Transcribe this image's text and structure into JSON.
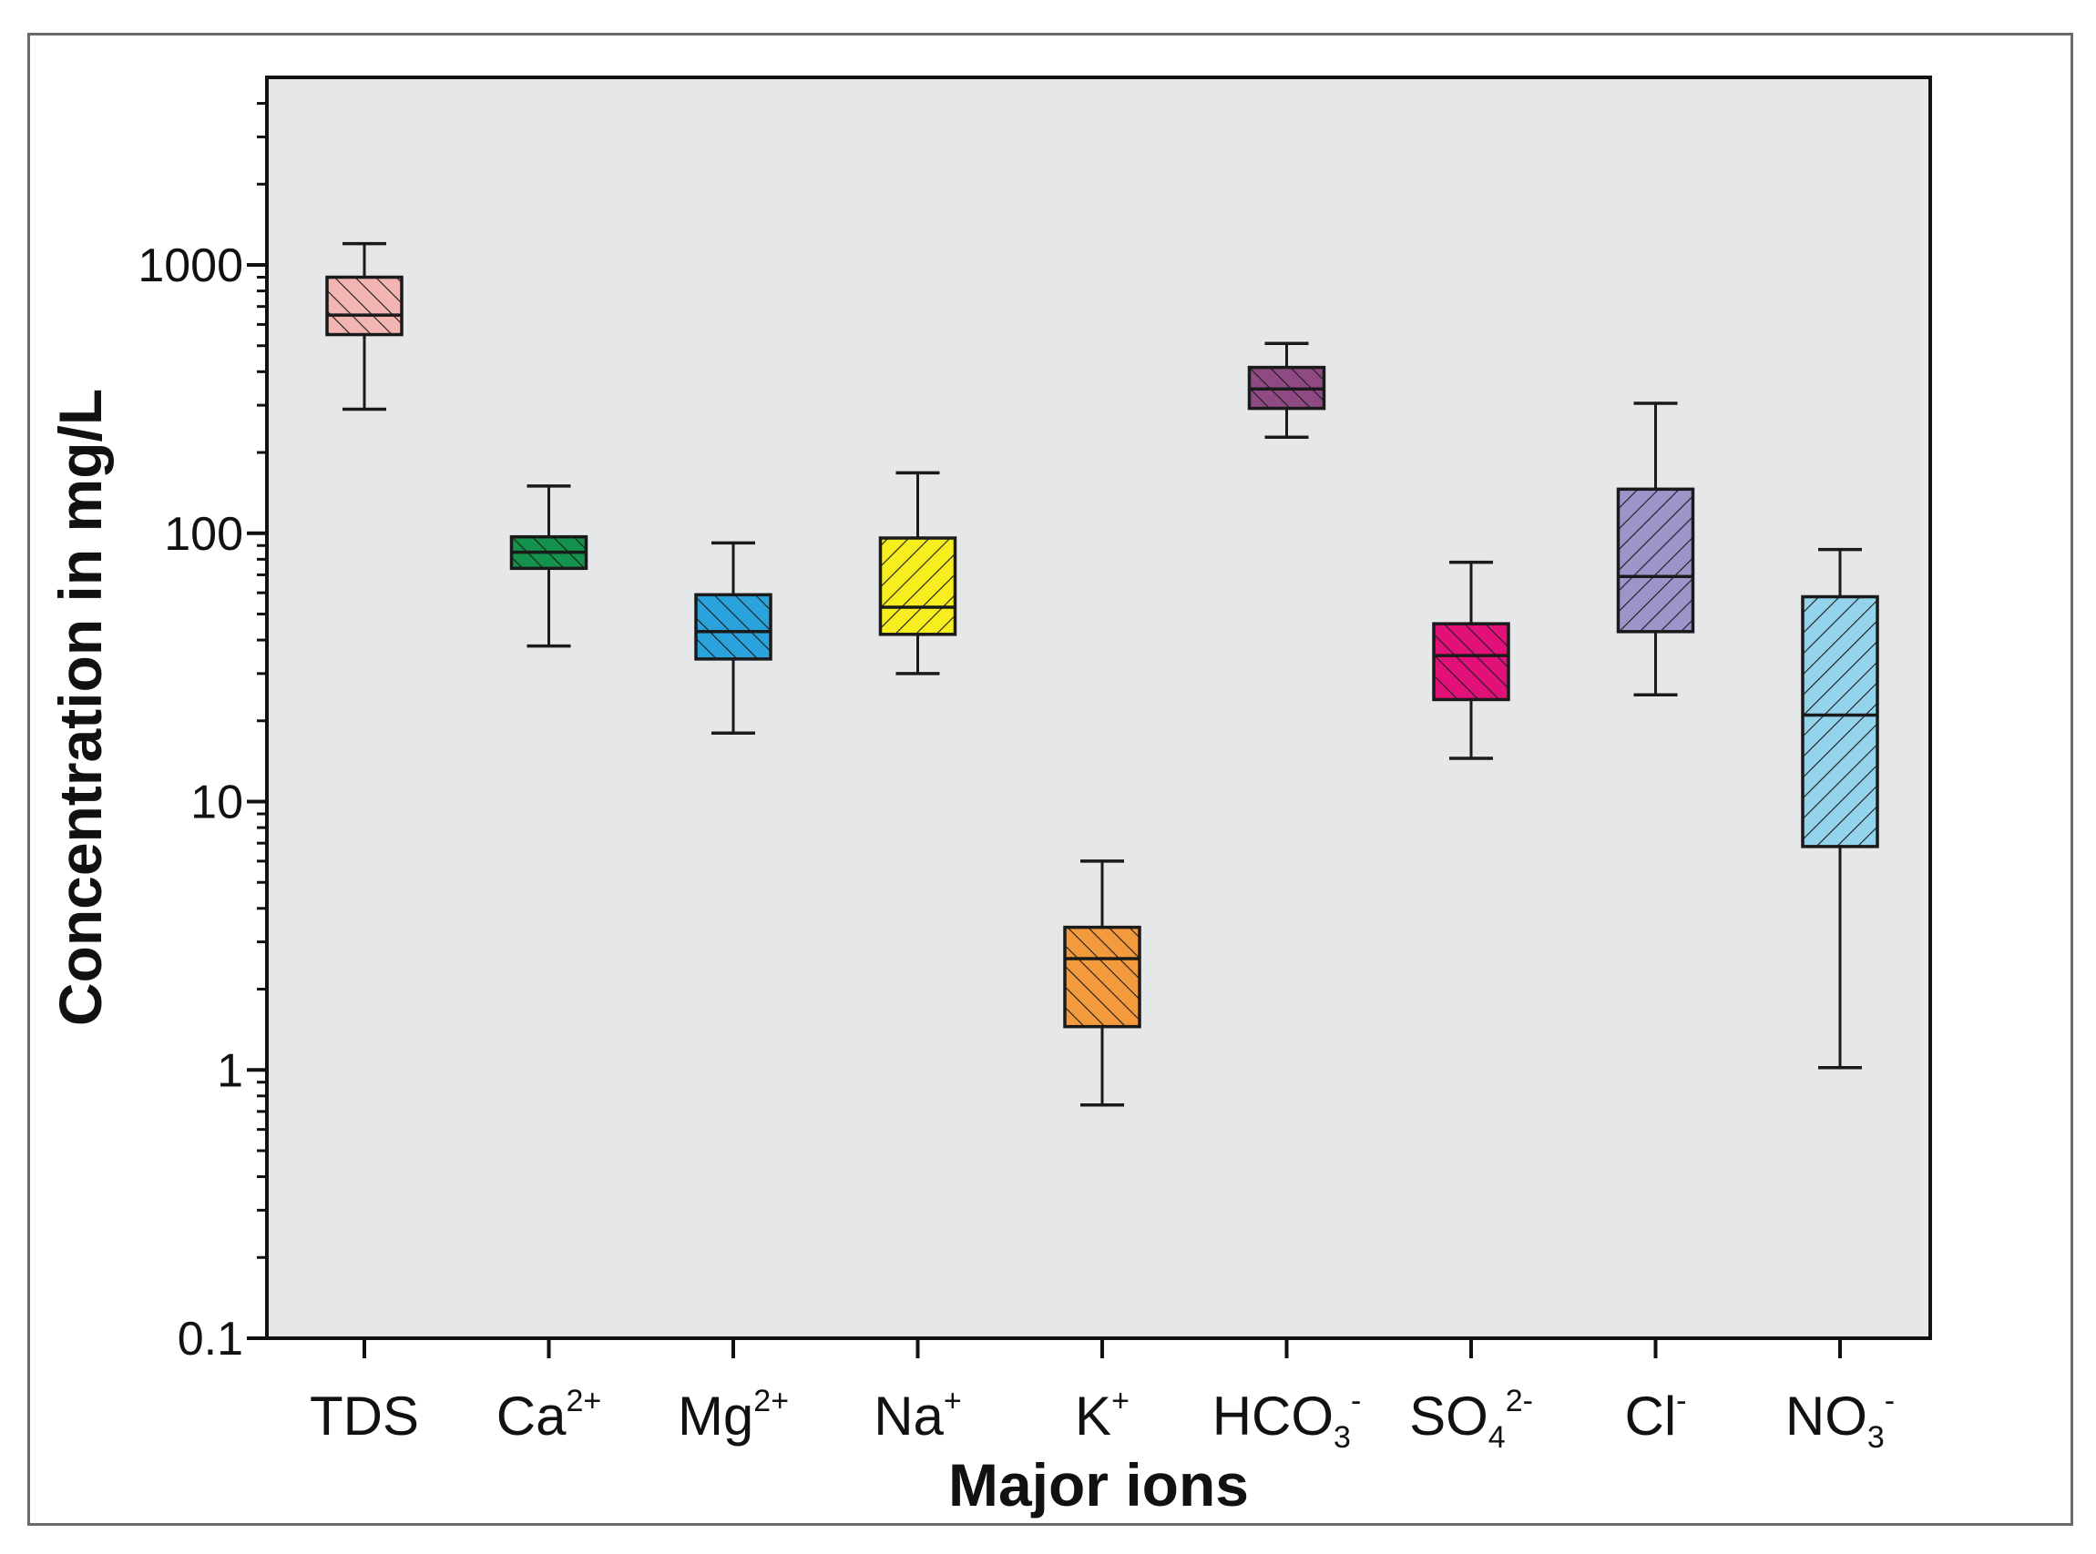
{
  "chart_data": {
    "type": "boxplot",
    "title": "",
    "xlabel": "Major ions",
    "ylabel": "Concentration in mg/L",
    "yscale": "log",
    "ylim": [
      0.1,
      5000
    ],
    "yticks": [
      0.1,
      1,
      10,
      100,
      1000
    ],
    "ytick_labels": [
      "0.1",
      "1",
      "10",
      "100",
      "1000"
    ],
    "grid": false,
    "plot_background": "#e6e7e9",
    "categories": [
      {
        "base": "TDS",
        "sup": "",
        "sub": "",
        "color": "#f2b5b2",
        "hatch": "right",
        "min": 290,
        "q1": 550,
        "median": 650,
        "q3": 900,
        "max": 1200
      },
      {
        "base": "Ca",
        "sup": "2+",
        "sub": "",
        "color": "#14914a",
        "hatch": "right",
        "min": 38,
        "q1": 74,
        "median": 85,
        "q3": 97,
        "max": 150
      },
      {
        "base": "Mg",
        "sup": "2+",
        "sub": "",
        "color": "#2aa3dc",
        "hatch": "right",
        "min": 18,
        "q1": 34,
        "median": 43,
        "q3": 59,
        "max": 92
      },
      {
        "base": "Na",
        "sup": "+",
        "sub": "",
        "color": "#f6ee1f",
        "hatch": "left",
        "min": 30,
        "q1": 42,
        "median": 53,
        "q3": 96,
        "max": 168
      },
      {
        "base": "K",
        "sup": "+",
        "sub": "",
        "color": "#f39a3c",
        "hatch": "right",
        "min": 0.74,
        "q1": 1.45,
        "median": 2.6,
        "q3": 3.4,
        "max": 6
      },
      {
        "base": "HCO",
        "sup": "-",
        "sub": "3",
        "color": "#8f4a84",
        "hatch": "right",
        "min": 228,
        "q1": 292,
        "median": 345,
        "q3": 415,
        "max": 510
      },
      {
        "base": "SO",
        "sup": "2-",
        "sub": "4",
        "color": "#e2117a",
        "hatch": "right",
        "min": 14.5,
        "q1": 24,
        "median": 35,
        "q3": 46,
        "max": 78
      },
      {
        "base": "Cl",
        "sup": "-",
        "sub": "",
        "color": "#9b95c9",
        "hatch": "left",
        "min": 25,
        "q1": 43,
        "median": 69,
        "q3": 146,
        "max": 305
      },
      {
        "base": "NO",
        "sup": "-",
        "sub": "3",
        "color": "#93d3ec",
        "hatch": "left",
        "min": 1.02,
        "q1": 6.8,
        "median": 21,
        "q3": 58,
        "max": 87
      }
    ]
  }
}
